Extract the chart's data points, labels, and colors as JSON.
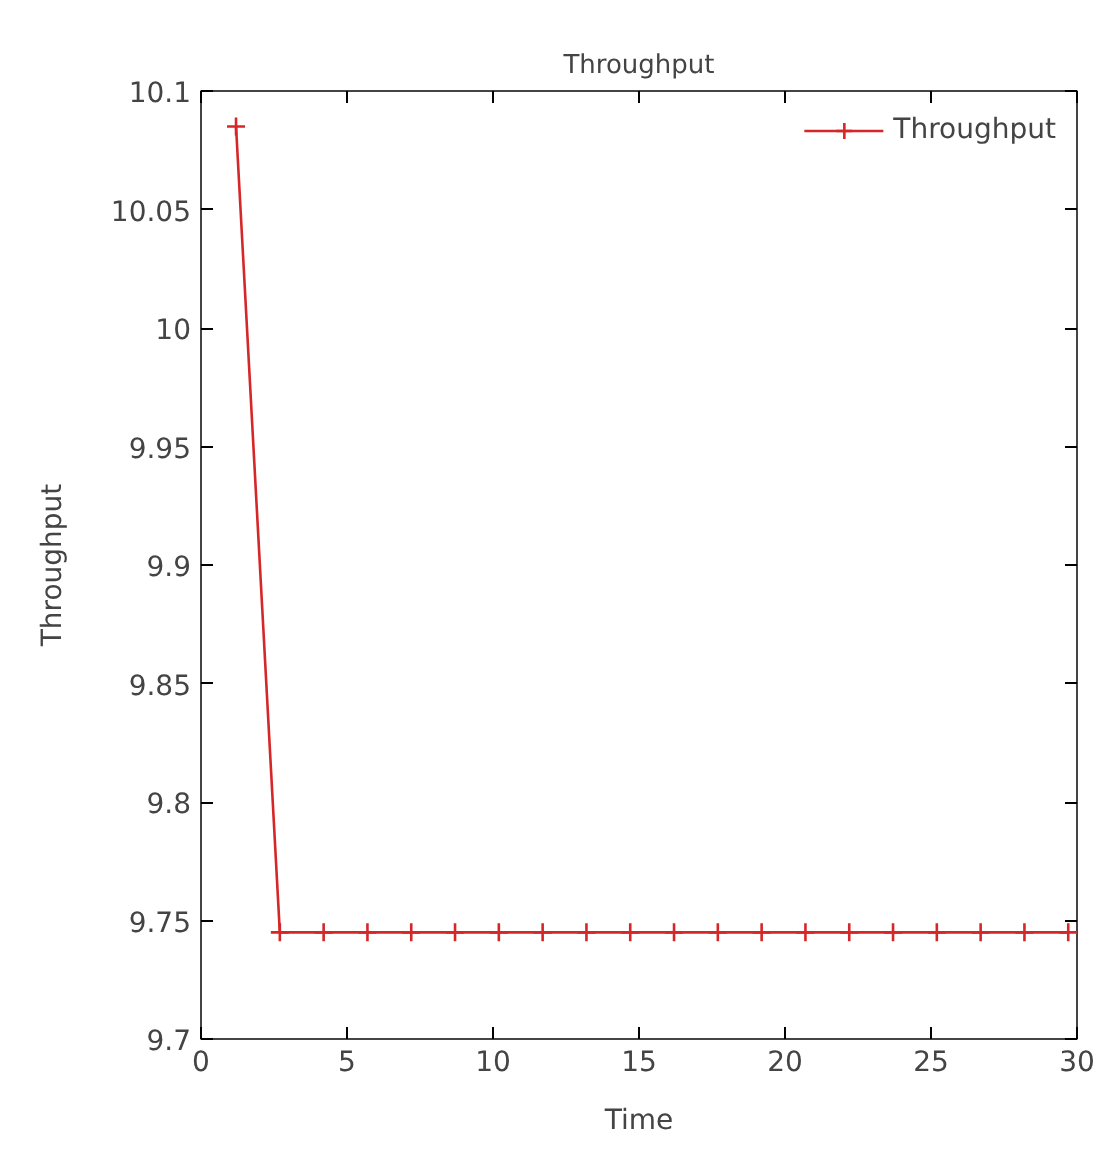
{
  "chart_data": {
    "type": "line",
    "title": "Throughput",
    "xlabel": "Time",
    "ylabel": "Throughput",
    "x": [
      1.2,
      2.7,
      4.2,
      5.7,
      7.2,
      8.7,
      10.2,
      11.7,
      13.2,
      14.7,
      16.2,
      17.7,
      19.2,
      20.7,
      22.2,
      23.7,
      25.2,
      26.7,
      28.2,
      29.7
    ],
    "series": [
      {
        "name": "Throughput",
        "color": "#d62728",
        "values": [
          10.085,
          9.745,
          9.745,
          9.745,
          9.745,
          9.745,
          9.745,
          9.745,
          9.745,
          9.745,
          9.745,
          9.745,
          9.745,
          9.745,
          9.745,
          9.745,
          9.745,
          9.745,
          9.745,
          9.745
        ]
      }
    ],
    "xlim": [
      0,
      30
    ],
    "ylim": [
      9.7,
      10.1
    ],
    "xticks": [
      0,
      5,
      10,
      15,
      20,
      25,
      30
    ],
    "yticks": [
      9.7,
      9.75,
      9.8,
      9.85,
      9.9,
      9.95,
      10,
      10.05,
      10.1
    ],
    "grid": false,
    "legend": "top right",
    "marker": "cross",
    "line_style": "solid"
  }
}
